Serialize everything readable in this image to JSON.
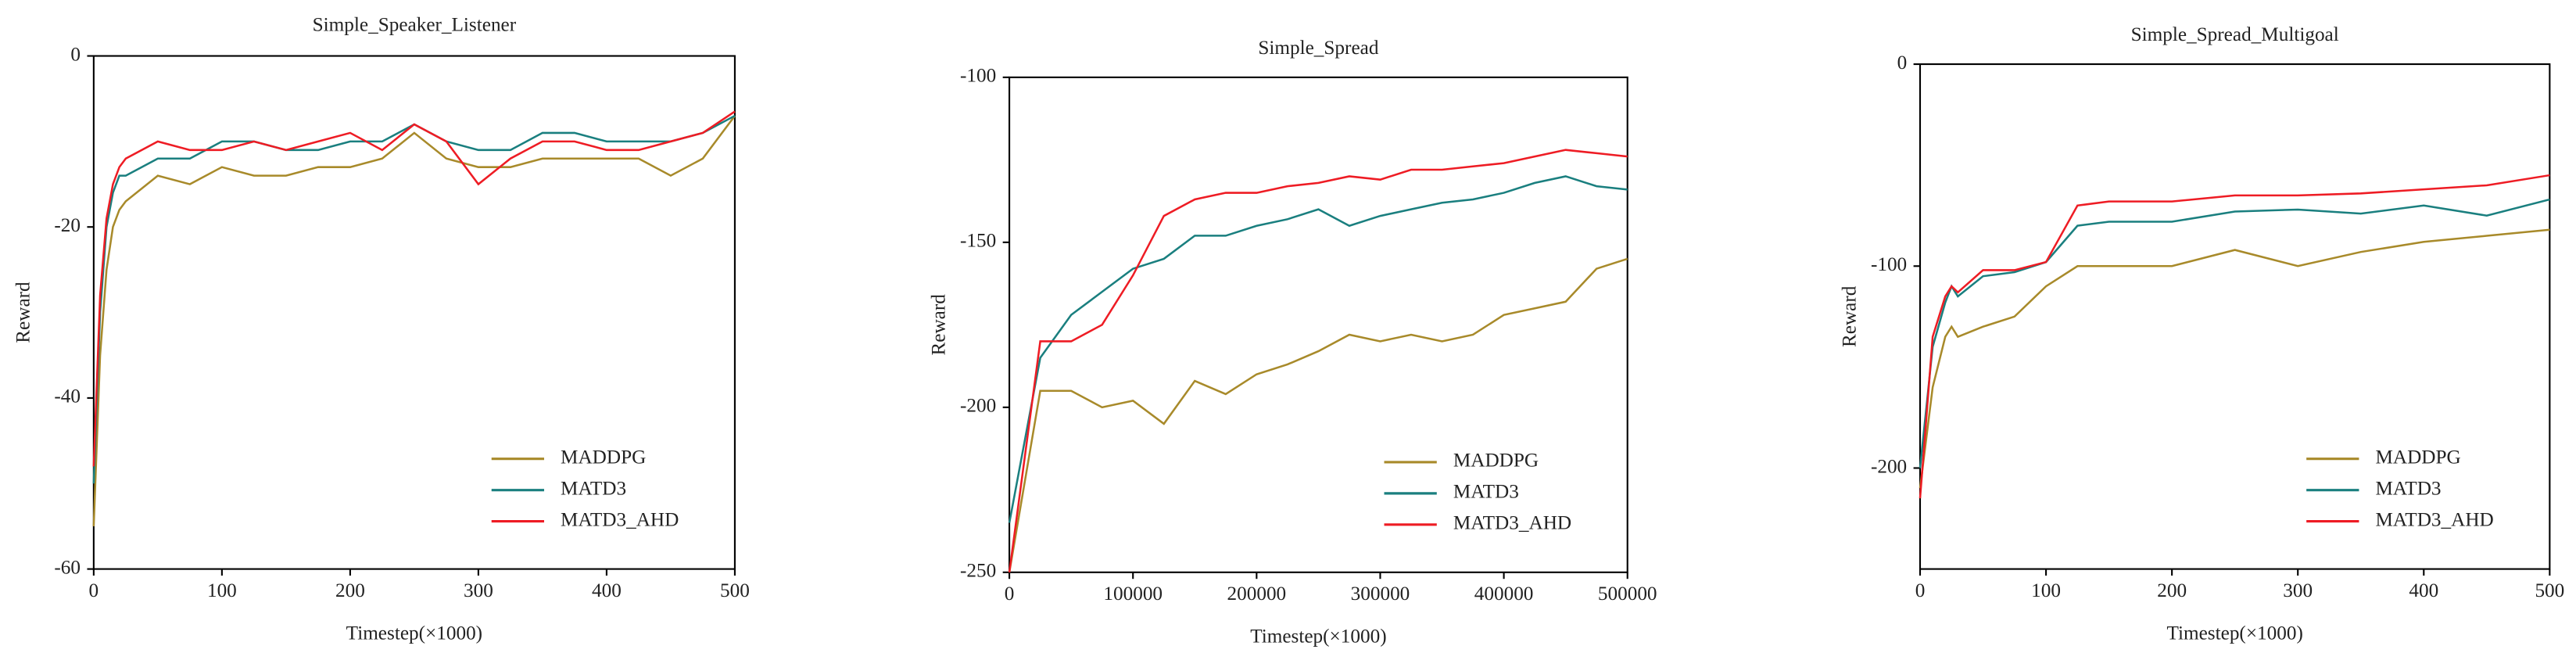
{
  "chart_data": [
    {
      "type": "line",
      "title": "Simple_Speaker_Listener",
      "xlabel": "Timestep(×1000)",
      "ylabel": "Reward",
      "x": [
        0,
        5,
        10,
        15,
        20,
        25,
        50,
        75,
        100,
        125,
        150,
        175,
        200,
        225,
        250,
        275,
        300,
        325,
        350,
        375,
        400,
        425,
        450,
        475,
        500
      ],
      "xlim": [
        0,
        500
      ],
      "xticks": [
        0,
        100,
        200,
        300,
        400,
        500
      ],
      "ylim": [
        -60,
        0
      ],
      "yticks": [
        -60,
        -40,
        -20,
        0
      ],
      "legend": "lower right",
      "series": [
        {
          "name": "MADDPG",
          "color": "#a88a2a",
          "values": [
            -55,
            -35,
            -25,
            -20,
            -18,
            -17,
            -14,
            -15,
            -13,
            -14,
            -14,
            -13,
            -13,
            -12,
            -9,
            -12,
            -13,
            -13,
            -12,
            -12,
            -12,
            -12,
            -14,
            -12,
            -7
          ]
        },
        {
          "name": "MATD3",
          "color": "#1a7f7f",
          "values": [
            -50,
            -30,
            -20,
            -16,
            -14,
            -14,
            -12,
            -12,
            -10,
            -10,
            -11,
            -11,
            -10,
            -10,
            -8,
            -10,
            -11,
            -11,
            -9,
            -9,
            -10,
            -10,
            -10,
            -9,
            -7
          ]
        },
        {
          "name": "MATD3_AHD",
          "color": "#ee1c24",
          "values": [
            -48,
            -28,
            -19,
            -15,
            -13,
            -12,
            -10,
            -11,
            -11,
            -10,
            -11,
            -10,
            -9,
            -11,
            -8,
            -10,
            -15,
            -12,
            -10,
            -10,
            -11,
            -11,
            -10,
            -9,
            -6.5
          ]
        }
      ]
    },
    {
      "type": "line",
      "title": "Simple_Spread",
      "xlabel": "Timestep(×1000)",
      "ylabel": "Reward",
      "x": [
        0,
        25000,
        50000,
        75000,
        100000,
        125000,
        150000,
        175000,
        200000,
        225000,
        250000,
        275000,
        300000,
        325000,
        350000,
        375000,
        400000,
        425000,
        450000,
        475000,
        500000
      ],
      "xlim": [
        0,
        500000
      ],
      "xticks": [
        0,
        100000,
        200000,
        300000,
        400000,
        500000
      ],
      "ylim": [
        -250,
        -100
      ],
      "yticks": [
        -250,
        -200,
        -150,
        -100
      ],
      "legend": "lower right",
      "series": [
        {
          "name": "MADDPG",
          "color": "#a88a2a",
          "values": [
            -250,
            -195,
            -195,
            -200,
            -198,
            -205,
            -192,
            -196,
            -190,
            -187,
            -183,
            -178,
            -180,
            -178,
            -180,
            -178,
            -172,
            -170,
            -168,
            -158,
            -155
          ]
        },
        {
          "name": "MATD3",
          "color": "#1a7f7f",
          "values": [
            -235,
            -185,
            -172,
            -165,
            -158,
            -155,
            -148,
            -148,
            -145,
            -143,
            -140,
            -145,
            -142,
            -140,
            -138,
            -137,
            -135,
            -132,
            -130,
            -133,
            -134
          ]
        },
        {
          "name": "MATD3_AHD",
          "color": "#ee1c24",
          "values": [
            -250,
            -180,
            -180,
            -175,
            -160,
            -142,
            -137,
            -135,
            -135,
            -133,
            -132,
            -130,
            -131,
            -128,
            -128,
            -127,
            -126,
            -124,
            -122,
            -123,
            -124
          ]
        }
      ]
    },
    {
      "type": "line",
      "title": "Simple_Spread_Multigoal",
      "xlabel": "Timestep(×1000)",
      "ylabel": "Reward",
      "x": [
        0,
        10,
        20,
        25,
        30,
        50,
        75,
        100,
        125,
        150,
        200,
        250,
        300,
        350,
        400,
        450,
        500
      ],
      "xlim": [
        0,
        500
      ],
      "xticks": [
        0,
        100,
        200,
        300,
        400,
        500
      ],
      "ylim": [
        -250,
        0
      ],
      "yticks": [
        -200,
        -100,
        0
      ],
      "legend": "lower right",
      "series": [
        {
          "name": "MADDPG",
          "color": "#a88a2a",
          "values": [
            -210,
            -160,
            -135,
            -130,
            -135,
            -130,
            -125,
            -110,
            -100,
            -100,
            -100,
            -92,
            -100,
            -93,
            -88,
            -85,
            -82
          ]
        },
        {
          "name": "MATD3",
          "color": "#1a7f7f",
          "values": [
            -200,
            -140,
            -118,
            -110,
            -115,
            -105,
            -103,
            -98,
            -80,
            -78,
            -78,
            -73,
            -72,
            -74,
            -70,
            -75,
            -67
          ]
        },
        {
          "name": "MATD3_AHD",
          "color": "#ee1c24",
          "values": [
            -215,
            -135,
            -115,
            -110,
            -113,
            -102,
            -102,
            -98,
            -70,
            -68,
            -68,
            -65,
            -65,
            -64,
            -62,
            -60,
            -55
          ]
        }
      ]
    }
  ]
}
